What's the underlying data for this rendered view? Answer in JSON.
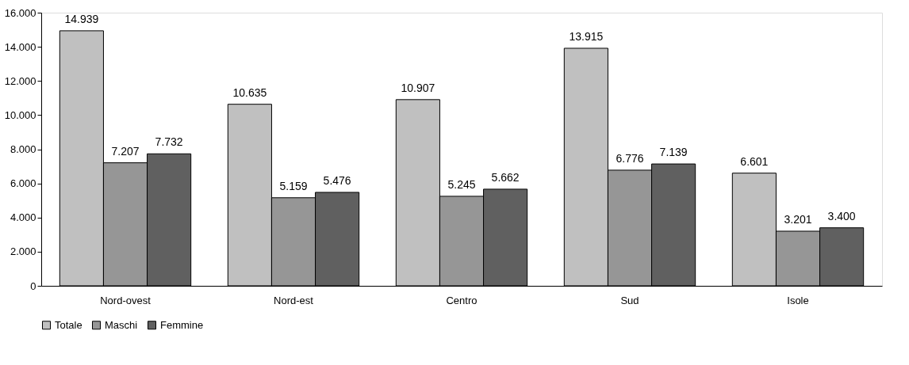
{
  "chart_data": {
    "type": "bar",
    "categories": [
      "Nord-ovest",
      "Nord-est",
      "Centro",
      "Sud",
      "Isole"
    ],
    "series": [
      {
        "name": "Totale",
        "color": "#c0c0c0",
        "values": [
          14939,
          10635,
          10907,
          13915,
          6601
        ],
        "value_labels": [
          "14.939",
          "10.635",
          "10.907",
          "13.915",
          "6.601"
        ]
      },
      {
        "name": "Maschi",
        "color": "#969696",
        "values": [
          7207,
          5159,
          5245,
          6776,
          3201
        ],
        "value_labels": [
          "7.207",
          "5.159",
          "5.245",
          "6.776",
          "3.201"
        ]
      },
      {
        "name": "Femmine",
        "color": "#606060",
        "values": [
          7732,
          5476,
          5662,
          7139,
          3400
        ],
        "value_labels": [
          "7.732",
          "5.476",
          "5.662",
          "7.139",
          "3.400"
        ]
      }
    ],
    "ylim": [
      0,
      16000
    ],
    "yticks": [
      {
        "value": 0,
        "label": "0"
      },
      {
        "value": 2000,
        "label": "2.000"
      },
      {
        "value": 4000,
        "label": "4.000"
      },
      {
        "value": 6000,
        "label": "6.000"
      },
      {
        "value": 8000,
        "label": "8.000"
      },
      {
        "value": 10000,
        "label": "10.000"
      },
      {
        "value": 12000,
        "label": "12.000"
      },
      {
        "value": 14000,
        "label": "14.000"
      },
      {
        "value": 16000,
        "label": "16.000"
      }
    ],
    "grid": false,
    "legend": "bottom"
  }
}
